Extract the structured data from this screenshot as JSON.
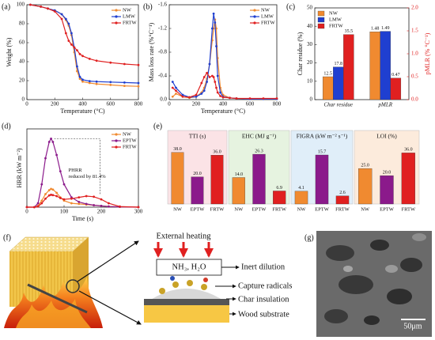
{
  "chart_data": [
    {
      "type": "line",
      "label": "(a)",
      "xlabel": "Temperature (°C)",
      "ylabel": "Weight (%)",
      "x": [
        25,
        100,
        150,
        200,
        250,
        280,
        300,
        320,
        340,
        360,
        380,
        400,
        450,
        500,
        600,
        700,
        800
      ],
      "xlim": [
        0,
        800
      ],
      "xticks": [
        0,
        200,
        400,
        600,
        800
      ],
      "ylim": [
        0,
        100
      ],
      "yticks": [
        0,
        20,
        40,
        60,
        80,
        100
      ],
      "legend": "top-right",
      "series": [
        {
          "name": "NW",
          "color": "#f08a30",
          "values": [
            100,
            98,
            96,
            94,
            90,
            84,
            78,
            68,
            50,
            30,
            22,
            19,
            17.5,
            16.5,
            15.5,
            14.5,
            14
          ]
        },
        {
          "name": "LMW",
          "color": "#1f3fd0",
          "values": [
            100,
            98,
            96,
            94,
            90,
            85,
            80,
            70,
            55,
            35,
            24,
            21,
            19.5,
            19,
            18.5,
            18,
            17.5
          ]
        },
        {
          "name": "FRTW",
          "color": "#e02020",
          "values": [
            100,
            98,
            96,
            93,
            85,
            70,
            62,
            58,
            55,
            52,
            48,
            46,
            43,
            41,
            39,
            37.5,
            36.5
          ]
        }
      ]
    },
    {
      "type": "line",
      "label": "(b)",
      "xlabel": "Temperature (°C)",
      "ylabel": "Mass loss rate (%°C⁻¹)",
      "x": [
        25,
        50,
        100,
        150,
        200,
        240,
        260,
        280,
        300,
        320,
        330,
        340,
        350,
        360,
        380,
        400,
        450,
        500,
        600,
        700,
        800
      ],
      "xlim": [
        0,
        800
      ],
      "xticks": [
        0,
        200,
        400,
        600,
        800
      ],
      "ylim": [
        0,
        -1.6
      ],
      "yticks": [
        {
          "value": 0,
          "label": "0.0"
        },
        -0.4,
        -0.8,
        -1.2,
        -1.6
      ],
      "legend": "top-right",
      "series": [
        {
          "name": "NW",
          "color": "#f08a30",
          "values": [
            -0.05,
            -0.1,
            -0.05,
            -0.03,
            -0.05,
            -0.12,
            -0.2,
            -0.35,
            -0.6,
            -1.0,
            -1.2,
            -1.35,
            -1.2,
            -0.7,
            -0.2,
            -0.08,
            -0.03,
            -0.02,
            -0.01,
            -0.01,
            -0.01
          ]
        },
        {
          "name": "LMW",
          "color": "#1f3fd0",
          "values": [
            -0.3,
            -0.2,
            -0.08,
            -0.04,
            -0.05,
            -0.1,
            -0.15,
            -0.3,
            -0.6,
            -1.2,
            -1.45,
            -1.3,
            -0.9,
            -0.4,
            -0.12,
            -0.05,
            -0.03,
            -0.02,
            -0.01,
            -0.01,
            -0.01
          ]
        },
        {
          "name": "FRTW",
          "color": "#e02020",
          "values": [
            -0.2,
            -0.15,
            -0.05,
            -0.04,
            -0.08,
            -0.28,
            -0.38,
            -0.45,
            -0.38,
            -0.4,
            -0.38,
            -0.3,
            -0.2,
            -0.12,
            -0.06,
            -0.04,
            -0.03,
            -0.02,
            -0.02,
            -0.02,
            -0.02
          ]
        }
      ]
    },
    {
      "type": "dualbar",
      "label": "(c)",
      "categories": [
        "Char residue",
        "pMLR"
      ],
      "category_axes": [
        "y",
        "y2"
      ],
      "ylabel": "Char residue (%)",
      "y2label": "pMLR (% °C⁻¹)",
      "y2color": "#e02020",
      "ylim": [
        0,
        50
      ],
      "yticks": [
        0,
        10,
        20,
        30,
        40,
        50
      ],
      "y2lim": [
        0,
        2
      ],
      "y2ticks": [
        {
          "value": 0,
          "label": "0.0"
        },
        0.5,
        {
          "value": 1,
          "label": "1.0"
        },
        1.5,
        {
          "value": 2,
          "label": "2.0"
        }
      ],
      "legend": "top-left",
      "series": [
        {
          "name": "NW",
          "color": "#f08a30",
          "values": [
            12.5,
            1.48
          ]
        },
        {
          "name": "LMW",
          "color": "#1f3fd0",
          "values": [
            17.8,
            1.49
          ]
        },
        {
          "name": "FRTW",
          "color": "#e02020",
          "values": [
            35.5,
            0.47
          ]
        }
      ]
    },
    {
      "type": "line",
      "label": "(d)",
      "xlabel": "Time (s)",
      "ylabel": "HRR (kW m⁻²)",
      "x": [
        0,
        20,
        30,
        40,
        50,
        60,
        65,
        70,
        80,
        90,
        100,
        120,
        140,
        160,
        180,
        200,
        220,
        250,
        300
      ],
      "xlim": [
        0,
        300
      ],
      "xticks": [
        0,
        100,
        200,
        300
      ],
      "ylim": [
        0,
        1200
      ],
      "legend": "top-right",
      "annotation_lines": [
        "PHRR",
        "reduced by 81.4%"
      ],
      "series": [
        {
          "name": "NW",
          "color": "#f08a30",
          "values": [
            0,
            0,
            20,
            100,
            200,
            260,
            280,
            270,
            220,
            150,
            100,
            60,
            50,
            40,
            30,
            20,
            10,
            5,
            0
          ]
        },
        {
          "name": "EPTW",
          "color": "#8b1a8b",
          "values": [
            0,
            0,
            60,
            350,
            750,
            1000,
            1050,
            1000,
            800,
            550,
            350,
            150,
            80,
            50,
            30,
            20,
            10,
            5,
            0
          ]
        },
        {
          "name": "FRTW",
          "color": "#e02020",
          "values": [
            0,
            0,
            10,
            60,
            130,
            180,
            190,
            185,
            170,
            140,
            120,
            130,
            150,
            170,
            160,
            120,
            60,
            10,
            0
          ]
        }
      ]
    },
    {
      "type": "panelbar",
      "label": "(e)",
      "title": "TTI (s)",
      "background": "#fbe3e6",
      "categories": [
        "NW",
        "EPTW",
        "FRTW"
      ],
      "colors": [
        "#f08a30",
        "#8b1a8b",
        "#e02020"
      ],
      "ylim": [
        0,
        46
      ],
      "values": [
        38,
        20,
        36
      ],
      "value_labels": [
        "38.0",
        "20.0",
        "36.0"
      ]
    },
    {
      "type": "panelbar",
      "title": "EHC (MJ g⁻¹)",
      "background": "#e6f3e0",
      "categories": [
        "NW",
        "EPTW",
        "FRTW"
      ],
      "colors": [
        "#f08a30",
        "#8b1a8b",
        "#e02020"
      ],
      "ylim": [
        0,
        33
      ],
      "values": [
        14,
        26.3,
        6.9
      ],
      "value_labels": [
        "14.0",
        "26.3",
        "6.9"
      ]
    },
    {
      "type": "panelbar",
      "title": "FIGRA (kW m⁻² s⁻¹)",
      "background": "#e0eef9",
      "categories": [
        "NW",
        "EPTW",
        "FRTW"
      ],
      "colors": [
        "#f08a30",
        "#8b1a8b",
        "#e02020"
      ],
      "ylim": [
        0,
        20
      ],
      "values": [
        4.1,
        15.7,
        2.6
      ],
      "value_labels": [
        "4.1",
        "15.7",
        "2.6"
      ]
    },
    {
      "type": "panelbar",
      "title": "LOI (%)",
      "background": "#fcebdc",
      "categories": [
        "NW",
        "EPTW",
        "FRTW"
      ],
      "colors": [
        "#f08a30",
        "#8b1a8b",
        "#e02020"
      ],
      "ylim": [
        0,
        44
      ],
      "values": [
        25,
        20,
        36
      ],
      "value_labels": [
        "25.0",
        "20.0",
        "36.0"
      ]
    }
  ],
  "diagram": {
    "label": "(f)",
    "heating": "External heating",
    "gases": "NH₃, H₂O",
    "inert": "Inert dilution",
    "radicals": "Capture  radicals",
    "char": "Char insulation",
    "wood": "Wood substrate"
  },
  "image": {
    "label": "(g)",
    "scale_bar": "50μm"
  }
}
